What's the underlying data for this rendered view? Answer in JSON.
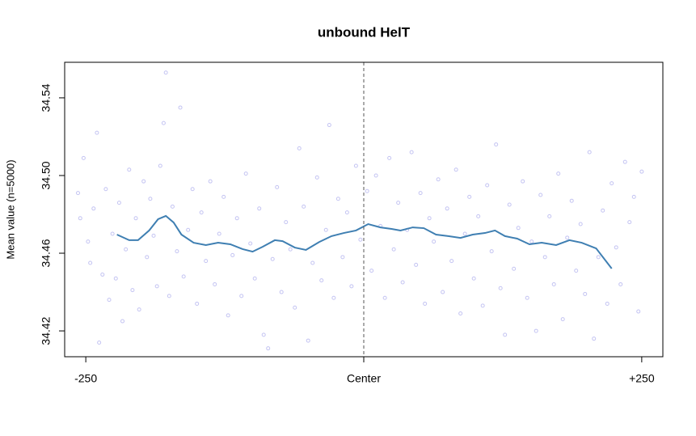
{
  "chart_data": {
    "type": "scatter",
    "title": "unbound HelT",
    "y_label": "Mean value (n=5000)",
    "xlim": [
      -269,
      269
    ],
    "ylim": [
      34.4067,
      34.5583
    ],
    "xticks": [
      -250,
      {
        "value": 0,
        "label": "Center"
      },
      {
        "value": 250,
        "label": "+250"
      }
    ],
    "yticks": [
      34.42,
      34.46,
      {
        "value": 34.5,
        "label": "34.50"
      },
      34.54
    ],
    "vline": 0,
    "series": [
      {
        "type": "scatter",
        "color": "#c4c4f2",
        "x": [
          -257,
          -255,
          -252,
          -248,
          -246,
          -243,
          -240,
          -238,
          -235,
          -232,
          -229,
          -226,
          -223,
          -220,
          -217,
          -214,
          -211,
          -208,
          -205,
          -202,
          -198,
          -195,
          -192,
          -189,
          -186,
          -183,
          -180,
          -178,
          -175,
          -172,
          -168,
          -165,
          -162,
          -158,
          -154,
          -150,
          -146,
          -142,
          -138,
          -134,
          -130,
          -126,
          -122,
          -118,
          -114,
          -110,
          -106,
          -102,
          -98,
          -94,
          -90,
          -86,
          -82,
          -78,
          -74,
          -70,
          -66,
          -62,
          -58,
          -54,
          -50,
          -46,
          -42,
          -38,
          -34,
          -31,
          -27,
          -23,
          -19,
          -15,
          -11,
          -7,
          -3,
          3,
          7,
          11,
          15,
          19,
          23,
          27,
          31,
          35,
          39,
          43,
          47,
          51,
          55,
          59,
          63,
          67,
          71,
          75,
          79,
          83,
          87,
          91,
          95,
          99,
          103,
          107,
          111,
          115,
          119,
          123,
          127,
          131,
          135,
          139,
          143,
          147,
          151,
          155,
          159,
          163,
          167,
          171,
          175,
          179,
          183,
          187,
          191,
          195,
          199,
          203,
          207,
          211,
          215,
          219,
          223,
          227,
          231,
          235,
          239,
          243,
          247,
          250
        ],
        "values": [
          34.491,
          34.478,
          34.509,
          34.466,
          34.455,
          34.483,
          34.522,
          34.414,
          34.449,
          34.493,
          34.436,
          34.47,
          34.447,
          34.486,
          34.425,
          34.462,
          34.503,
          34.441,
          34.478,
          34.431,
          34.497,
          34.458,
          34.488,
          34.469,
          34.443,
          34.505,
          34.527,
          34.553,
          34.438,
          34.484,
          34.461,
          34.535,
          34.448,
          34.472,
          34.493,
          34.434,
          34.481,
          34.456,
          34.497,
          34.444,
          34.47,
          34.489,
          34.428,
          34.459,
          34.478,
          34.438,
          34.501,
          34.465,
          34.447,
          34.483,
          34.418,
          34.411,
          34.457,
          34.494,
          34.44,
          34.476,
          34.462,
          34.432,
          34.514,
          34.484,
          34.415,
          34.455,
          34.499,
          34.446,
          34.472,
          34.526,
          34.437,
          34.488,
          34.458,
          34.481,
          34.443,
          34.505,
          34.467,
          34.492,
          34.451,
          34.5,
          34.474,
          34.437,
          34.509,
          34.462,
          34.486,
          34.445,
          34.472,
          34.512,
          34.454,
          34.491,
          34.434,
          34.478,
          34.466,
          34.498,
          34.44,
          34.483,
          34.456,
          34.503,
          34.429,
          34.47,
          34.489,
          34.447,
          34.479,
          34.433,
          34.495,
          34.461,
          34.516,
          34.442,
          34.418,
          34.485,
          34.452,
          34.473,
          34.497,
          34.437,
          34.466,
          34.42,
          34.49,
          34.458,
          34.479,
          34.444,
          34.501,
          34.426,
          34.468,
          34.487,
          34.451,
          34.475,
          34.439,
          34.512,
          34.416,
          34.458,
          34.482,
          34.434,
          34.496,
          34.463,
          34.444,
          34.507,
          34.476,
          34.489,
          34.43,
          34.502
        ]
      },
      {
        "type": "line",
        "color": "#3f7fb2",
        "x": [
          -222,
          -211,
          -203,
          -193,
          -185,
          -178,
          -171,
          -164,
          -153,
          -142,
          -131,
          -120,
          -109,
          -100,
          -91,
          -80,
          -73,
          -62,
          -52,
          -40,
          -29,
          -18,
          -7,
          4,
          15,
          25,
          33,
          44,
          54,
          65,
          76,
          87,
          98,
          109,
          118,
          127,
          138,
          149,
          160,
          173,
          185,
          196,
          209,
          223
        ],
        "values": [
          34.4696,
          34.4667,
          34.4667,
          34.4717,
          34.4775,
          34.4792,
          34.4758,
          34.4696,
          34.4654,
          34.4642,
          34.4654,
          34.4646,
          34.4621,
          34.4608,
          34.4633,
          34.4667,
          34.4662,
          34.4629,
          34.4617,
          34.4658,
          34.4688,
          34.4704,
          34.4717,
          34.475,
          34.4733,
          34.4725,
          34.4717,
          34.4733,
          34.4729,
          34.4696,
          34.4688,
          34.4679,
          34.4696,
          34.4704,
          34.4717,
          34.4688,
          34.4675,
          34.4646,
          34.4654,
          34.4642,
          34.4667,
          34.4654,
          34.4625,
          34.4521
        ]
      }
    ]
  }
}
